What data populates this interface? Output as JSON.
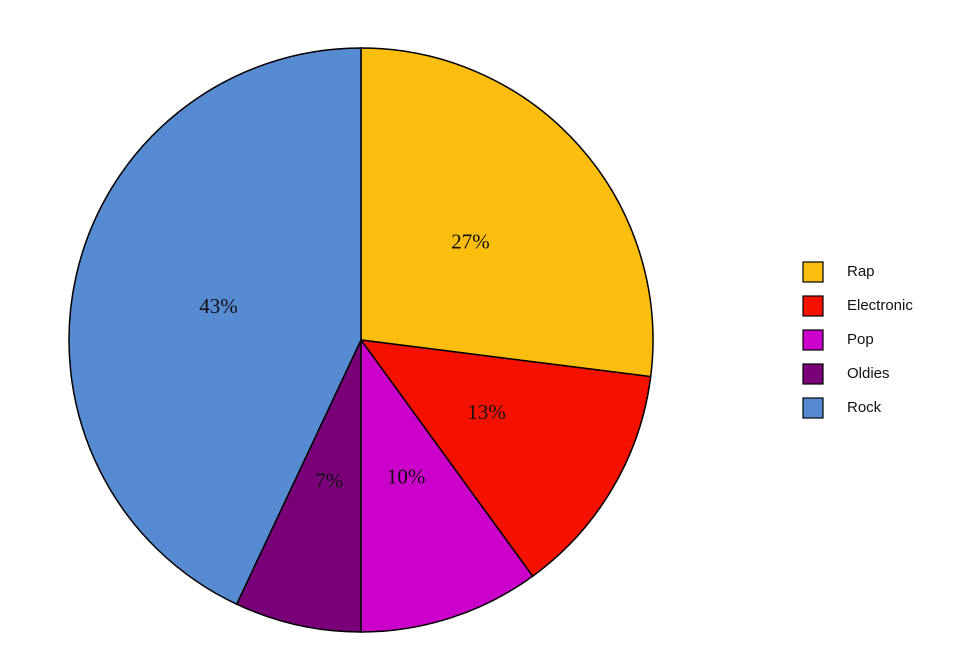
{
  "chart_data": {
    "type": "pie",
    "categories": [
      "Rap",
      "Electronic",
      "Pop",
      "Oldies",
      "Rock"
    ],
    "values": [
      27,
      13,
      10,
      7,
      43
    ],
    "value_labels": [
      "27%",
      "13%",
      "10%",
      "7%",
      "43%"
    ],
    "colors": [
      "#fbbe0e",
      "#f51100",
      "#cb00cb",
      "#7a007a",
      "#568bd2"
    ],
    "legend": "right"
  }
}
